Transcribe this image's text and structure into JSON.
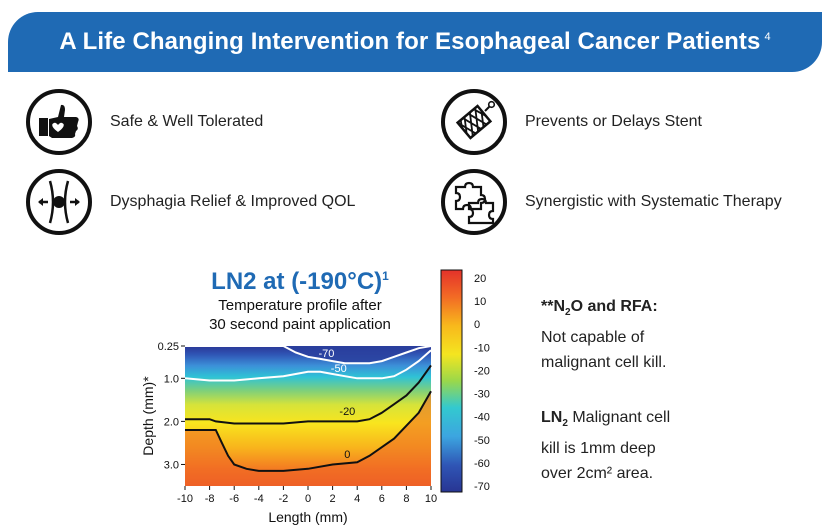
{
  "header": {
    "title": "A Life Changing Intervention for Esophageal Cancer Patients",
    "superscript": "4",
    "color": "#1f6ab4"
  },
  "features": [
    {
      "label": "Safe & Well Tolerated",
      "icon": "thumbs-up-heart-icon"
    },
    {
      "label": "Prevents or Delays Stent",
      "icon": "stent-mesh-icon"
    },
    {
      "label": "Dysphagia Relief & Improved QOL",
      "icon": "esophagus-expand-icon"
    },
    {
      "label": "Synergistic with Systematic Therapy",
      "icon": "puzzle-pieces-icon"
    }
  ],
  "chart_title": {
    "main": "LN2 at (-190°C)",
    "main_sup": "1",
    "sub_line1": "Temperature profile after",
    "sub_line2": "30 second paint application"
  },
  "notes": {
    "n2o_title_a": "**N",
    "n2o_title_sub": "2",
    "n2o_title_b": "O and RFA:",
    "n2o_line1": "Not capable of",
    "n2o_line2": "malignant cell kill.",
    "ln2_title": "LN",
    "ln2_sub": "2",
    "ln2_line1_rest": " Malignant cell",
    "ln2_line2": "kill is 1mm deep",
    "ln2_line3": "over 2cm² area."
  },
  "chart_data": {
    "type": "heatmap",
    "xlabel": "Length (mm)",
    "ylabel": "Depth (mm)*",
    "xlim": [
      -10,
      10
    ],
    "ylim": [
      0.25,
      3.5
    ],
    "x_ticks": [
      -10,
      -8,
      -6,
      -4,
      -2,
      0,
      2,
      4,
      6,
      8,
      10
    ],
    "y_ticks": [
      0.25,
      1.0,
      2.0,
      3.0
    ],
    "y_tick_labels": [
      "0.25",
      "1.0",
      "2.0",
      "3.0"
    ],
    "colorbar": {
      "min": -70,
      "max": 20,
      "ticks": [
        20,
        10,
        0,
        -10,
        -20,
        -30,
        -40,
        -50,
        -60,
        -70
      ]
    },
    "contours": [
      {
        "level": "-70",
        "color": "#ffffff",
        "x": [
          -10,
          -8,
          -6,
          -4,
          -2,
          -1,
          0,
          1,
          2,
          3,
          4,
          5,
          6,
          7,
          8,
          9,
          10
        ],
        "y": [
          0.25,
          0.25,
          0.25,
          0.25,
          0.25,
          0.4,
          0.5,
          0.55,
          0.6,
          0.65,
          0.65,
          0.65,
          0.6,
          0.5,
          0.4,
          0.3,
          0.25
        ]
      },
      {
        "level": "-50",
        "color": "#ffffff",
        "x": [
          -10,
          -8,
          -6,
          -4,
          -2,
          -1,
          0,
          1,
          2,
          3,
          4,
          5,
          6,
          7,
          8,
          9,
          10
        ],
        "y": [
          1.0,
          1.05,
          1.05,
          1.0,
          0.95,
          0.9,
          0.85,
          0.85,
          0.9,
          0.95,
          1.0,
          1.0,
          1.0,
          0.95,
          0.8,
          0.6,
          0.35
        ]
      },
      {
        "level": "-20",
        "color": "#111111",
        "x": [
          -10,
          -8,
          -7.5,
          -6,
          -4,
          -2,
          0,
          2,
          4,
          5,
          6,
          7,
          8,
          9,
          10
        ],
        "y": [
          1.95,
          1.95,
          2.0,
          2.05,
          2.05,
          2.05,
          2.0,
          2.0,
          2.0,
          1.95,
          1.8,
          1.6,
          1.4,
          1.1,
          0.7
        ]
      },
      {
        "level": "0",
        "color": "#111111",
        "x": [
          -10,
          -8,
          -7.5,
          -7,
          -6.5,
          -6,
          -5,
          -4,
          -2,
          0,
          2,
          4,
          5,
          6,
          7,
          8,
          9,
          10
        ],
        "y": [
          2.2,
          2.2,
          2.2,
          2.5,
          2.8,
          3.0,
          3.1,
          3.15,
          3.15,
          3.1,
          3.0,
          2.95,
          2.8,
          2.6,
          2.4,
          2.1,
          1.8,
          1.3
        ]
      }
    ]
  }
}
